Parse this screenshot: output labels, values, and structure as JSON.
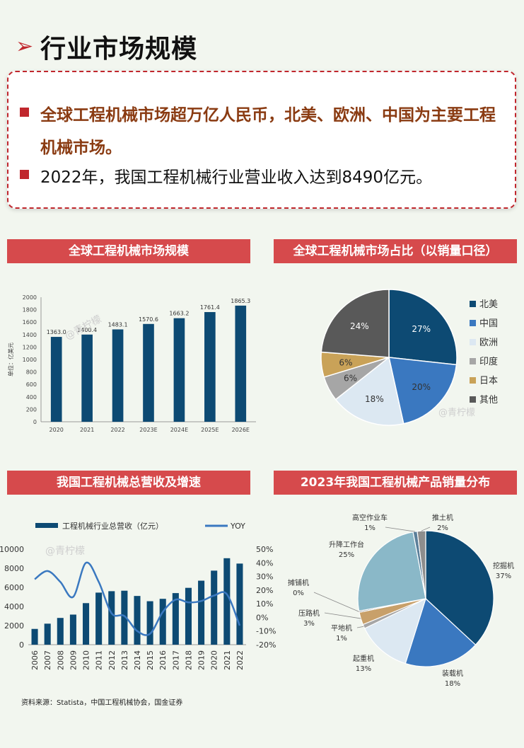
{
  "page": {
    "title": "行业市场规模",
    "bullets": [
      "全球工程机械市场超万亿人民币，北美、欧洲、中国为主要工程机械市场。",
      "2022年，我国工程机械行业营业收入达到8490亿元。"
    ],
    "source": "资料来源：Statista，中国工程机械协会，国金证券",
    "watermark": "@青柠檬"
  },
  "colors": {
    "accent": "#c0272d",
    "header_bg": "#d64a4c",
    "navy": "#0d4a73",
    "mid_blue": "#3a78c0",
    "light_blue": "#dce8f2",
    "gray": "#a6a6a6",
    "gold": "#c9a258",
    "dark_gray": "#595959",
    "teal": "#8ab8c8",
    "tan": "#c8a06a"
  },
  "chart_data": [
    {
      "type": "bar",
      "title": "全球工程机械市场规模",
      "ylabel": "单位：亿美元",
      "categories": [
        "2020",
        "2021",
        "2022",
        "2023E",
        "2024E",
        "2025E",
        "2026E"
      ],
      "values": [
        1363.0,
        1400.4,
        1483.1,
        1570.6,
        1663.2,
        1761.4,
        1865.3
      ],
      "value_labels": [
        "1363.0",
        "1400.4",
        "1483.1",
        "1570.6",
        "1663.2",
        "1761.4",
        "1865.3"
      ],
      "ylim": [
        0,
        2000
      ],
      "yticks": [
        "0",
        "200",
        "400",
        "600",
        "800",
        "1000",
        "1200",
        "1400",
        "1600",
        "1800",
        "2000"
      ],
      "grid": false
    },
    {
      "type": "pie",
      "title": "全球工程机械市场占比（以销量口径）",
      "labels": [
        "北美",
        "中国",
        "欧洲",
        "印度",
        "日本",
        "其他"
      ],
      "values": [
        27,
        20,
        18,
        6,
        6,
        24
      ],
      "value_labels": [
        "27%",
        "20%",
        "18%",
        "6%",
        "6%",
        "24%"
      ],
      "colors": [
        "#0d4a73",
        "#3a78c0",
        "#dce8f2",
        "#a6a6a6",
        "#c9a258",
        "#595959"
      ],
      "legend": "right"
    },
    {
      "type": "bar",
      "title": "我国工程机械总营收及增速",
      "categories": [
        "2006",
        "2007",
        "2008",
        "2009",
        "2010",
        "2011",
        "2012",
        "2013",
        "2014",
        "2015",
        "2016",
        "2017",
        "2018",
        "2019",
        "2020",
        "2021",
        "2022"
      ],
      "series": [
        {
          "name": "工程机械行业总营收（亿元）",
          "type": "bar",
          "axis": "left",
          "values": [
            1650,
            2200,
            2800,
            3150,
            4350,
            5450,
            5600,
            5650,
            5100,
            4550,
            4800,
            5400,
            5950,
            6700,
            7750,
            9050,
            8490
          ]
        },
        {
          "name": "YOY",
          "type": "line",
          "axis": "right",
          "values": [
            28,
            34,
            26,
            15,
            40,
            26,
            3,
            1,
            -10,
            -12,
            4,
            13,
            11,
            12,
            16,
            17,
            -6
          ]
        }
      ],
      "ylim": [
        0,
        10000
      ],
      "yticks": [
        "0",
        "2000",
        "4000",
        "6000",
        "8000",
        "10000"
      ],
      "y2lim": [
        -20,
        50
      ],
      "y2ticks": [
        "-20%",
        "-10%",
        "0%",
        "10%",
        "20%",
        "30%",
        "40%",
        "50%"
      ],
      "legend": "top"
    },
    {
      "type": "pie",
      "title": "2023年我国工程机械产品销量分布",
      "labels": [
        "挖掘机",
        "装载机",
        "起重机",
        "平地机",
        "压路机",
        "摊铺机",
        "升降工作台",
        "高空作业车",
        "推土机"
      ],
      "values": [
        37,
        18,
        13,
        1,
        3,
        0,
        25,
        1,
        2
      ],
      "value_labels": [
        "37%",
        "18%",
        "13%",
        "1%",
        "3%",
        "0%",
        "25%",
        "1%",
        "2%"
      ],
      "colors": [
        "#0d4a73",
        "#3a78c0",
        "#dce8f2",
        "#a6a6a6",
        "#c8a06a",
        "#5a5a5a",
        "#8ab8c8",
        "#5b7f9a",
        "#8d8d8d"
      ]
    }
  ]
}
